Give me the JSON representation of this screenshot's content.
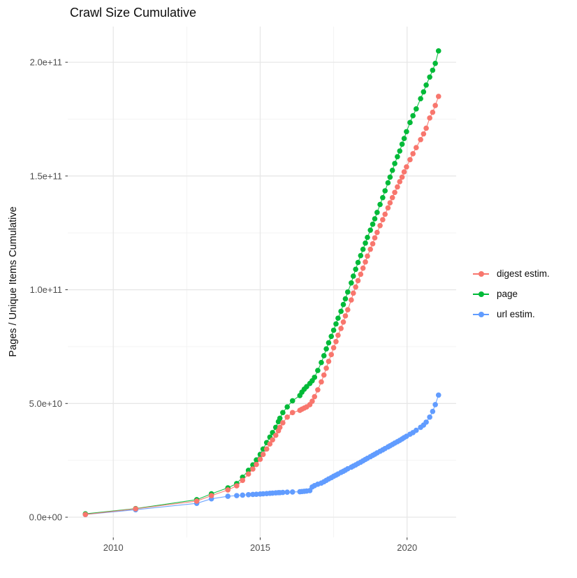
{
  "chart_data": {
    "type": "scatter",
    "title": "Crawl Size Cumulative",
    "xlabel": "",
    "ylabel": "Pages / Unique Items Cumulative",
    "grid": true,
    "legend_position": "right",
    "x_major_ticks": [
      2010,
      2015,
      2020
    ],
    "x_minor_ticks": [
      2012.5,
      2017.5
    ],
    "x_tick_labels": [
      "2010",
      "2015",
      "2020"
    ],
    "xlim": [
      2008.45,
      2021.67
    ],
    "y_value_multiplier": 10000000000,
    "y_major_ticks": [
      0,
      5,
      10,
      15,
      20
    ],
    "y_minor_ticks": [
      2.5,
      7.5,
      12.5,
      17.5
    ],
    "y_tick_labels": [
      "0.0e+00",
      "5.0e+10",
      "1.0e+11",
      "1.5e+11",
      "2.0e+11"
    ],
    "ylim": [
      -0.89,
      21.57
    ],
    "colors": {
      "digest": "#F8766D",
      "page": "#00BA38",
      "url": "#619CFF",
      "grid_major": "#e7e7e7",
      "grid_minor": "#f2f2f2",
      "axis_text": "#4d4d4d",
      "tick_mark": "#333333"
    },
    "series": [
      {
        "name": "digest estim.",
        "color": "#F8766D",
        "points": [
          [
            2009.05,
            0.12
          ],
          [
            2010.76,
            0.37
          ],
          [
            2012.84,
            0.71
          ],
          [
            2013.34,
            0.95
          ],
          [
            2013.9,
            1.2
          ],
          [
            2014.2,
            1.38
          ],
          [
            2014.4,
            1.62
          ],
          [
            2014.6,
            1.9
          ],
          [
            2014.75,
            2.12
          ],
          [
            2014.87,
            2.32
          ],
          [
            2015.0,
            2.55
          ],
          [
            2015.1,
            2.76
          ],
          [
            2015.22,
            3.0
          ],
          [
            2015.33,
            3.22
          ],
          [
            2015.42,
            3.4
          ],
          [
            2015.53,
            3.6
          ],
          [
            2015.62,
            3.8
          ],
          [
            2015.67,
            3.95
          ],
          [
            2015.77,
            4.15
          ],
          [
            2015.92,
            4.4
          ],
          [
            2016.1,
            4.6
          ],
          [
            2016.35,
            4.7
          ],
          [
            2016.42,
            4.75
          ],
          [
            2016.5,
            4.8
          ],
          [
            2016.58,
            4.85
          ],
          [
            2016.69,
            4.95
          ],
          [
            2016.77,
            5.1
          ],
          [
            2016.85,
            5.3
          ],
          [
            2016.96,
            5.6
          ],
          [
            2017.08,
            5.95
          ],
          [
            2017.17,
            6.25
          ],
          [
            2017.25,
            6.55
          ],
          [
            2017.33,
            6.85
          ],
          [
            2017.42,
            7.15
          ],
          [
            2017.5,
            7.45
          ],
          [
            2017.58,
            7.72
          ],
          [
            2017.65,
            8.0
          ],
          [
            2017.75,
            8.3
          ],
          [
            2017.83,
            8.58
          ],
          [
            2017.9,
            8.85
          ],
          [
            2017.98,
            9.12
          ],
          [
            2018.1,
            9.55
          ],
          [
            2018.17,
            9.85
          ],
          [
            2018.25,
            10.12
          ],
          [
            2018.33,
            10.4
          ],
          [
            2018.42,
            10.68
          ],
          [
            2018.5,
            10.95
          ],
          [
            2018.58,
            11.22
          ],
          [
            2018.65,
            11.48
          ],
          [
            2018.75,
            11.78
          ],
          [
            2018.83,
            12.02
          ],
          [
            2018.9,
            12.28
          ],
          [
            2018.98,
            12.52
          ],
          [
            2019.08,
            12.82
          ],
          [
            2019.17,
            13.08
          ],
          [
            2019.25,
            13.32
          ],
          [
            2019.35,
            13.6
          ],
          [
            2019.42,
            13.82
          ],
          [
            2019.5,
            14.05
          ],
          [
            2019.58,
            14.28
          ],
          [
            2019.67,
            14.52
          ],
          [
            2019.75,
            14.75
          ],
          [
            2019.83,
            14.95
          ],
          [
            2019.9,
            15.18
          ],
          [
            2019.98,
            15.4
          ],
          [
            2020.1,
            15.72
          ],
          [
            2020.2,
            15.98
          ],
          [
            2020.31,
            16.25
          ],
          [
            2020.46,
            16.6
          ],
          [
            2020.56,
            16.85
          ],
          [
            2020.65,
            17.1
          ],
          [
            2020.77,
            17.55
          ],
          [
            2020.87,
            17.8
          ],
          [
            2020.96,
            18.1
          ],
          [
            2021.07,
            18.5
          ]
        ]
      },
      {
        "name": "page",
        "color": "#00BA38",
        "points": [
          [
            2009.05,
            0.15
          ],
          [
            2010.76,
            0.38
          ],
          [
            2012.84,
            0.77
          ],
          [
            2013.34,
            1.03
          ],
          [
            2013.9,
            1.29
          ],
          [
            2014.2,
            1.48
          ],
          [
            2014.4,
            1.76
          ],
          [
            2014.6,
            2.06
          ],
          [
            2014.75,
            2.3
          ],
          [
            2014.87,
            2.52
          ],
          [
            2015.0,
            2.76
          ],
          [
            2015.1,
            3.0
          ],
          [
            2015.22,
            3.28
          ],
          [
            2015.33,
            3.52
          ],
          [
            2015.42,
            3.72
          ],
          [
            2015.53,
            3.95
          ],
          [
            2015.62,
            4.2
          ],
          [
            2015.67,
            4.35
          ],
          [
            2015.77,
            4.6
          ],
          [
            2015.92,
            4.85
          ],
          [
            2016.1,
            5.12
          ],
          [
            2016.35,
            5.35
          ],
          [
            2016.42,
            5.5
          ],
          [
            2016.5,
            5.63
          ],
          [
            2016.58,
            5.74
          ],
          [
            2016.69,
            5.88
          ],
          [
            2016.77,
            6.0
          ],
          [
            2016.85,
            6.15
          ],
          [
            2016.96,
            6.45
          ],
          [
            2017.08,
            6.8
          ],
          [
            2017.17,
            7.1
          ],
          [
            2017.25,
            7.4
          ],
          [
            2017.33,
            7.67
          ],
          [
            2017.42,
            7.95
          ],
          [
            2017.5,
            8.22
          ],
          [
            2017.58,
            8.5
          ],
          [
            2017.65,
            8.75
          ],
          [
            2017.75,
            9.05
          ],
          [
            2017.83,
            9.35
          ],
          [
            2017.9,
            9.6
          ],
          [
            2017.98,
            9.9
          ],
          [
            2018.1,
            10.3
          ],
          [
            2018.17,
            10.6
          ],
          [
            2018.25,
            10.9
          ],
          [
            2018.33,
            11.2
          ],
          [
            2018.42,
            11.5
          ],
          [
            2018.5,
            11.78
          ],
          [
            2018.58,
            12.05
          ],
          [
            2018.65,
            12.3
          ],
          [
            2018.75,
            12.62
          ],
          [
            2018.83,
            12.88
          ],
          [
            2018.9,
            13.12
          ],
          [
            2018.98,
            13.4
          ],
          [
            2019.08,
            13.75
          ],
          [
            2019.17,
            14.05
          ],
          [
            2019.25,
            14.35
          ],
          [
            2019.35,
            14.7
          ],
          [
            2019.42,
            14.95
          ],
          [
            2019.5,
            15.25
          ],
          [
            2019.58,
            15.55
          ],
          [
            2019.67,
            15.85
          ],
          [
            2019.75,
            16.1
          ],
          [
            2019.83,
            16.4
          ],
          [
            2019.9,
            16.65
          ],
          [
            2019.98,
            16.95
          ],
          [
            2020.1,
            17.35
          ],
          [
            2020.2,
            17.65
          ],
          [
            2020.31,
            17.95
          ],
          [
            2020.46,
            18.4
          ],
          [
            2020.56,
            18.7
          ],
          [
            2020.65,
            19.0
          ],
          [
            2020.77,
            19.35
          ],
          [
            2020.87,
            19.65
          ],
          [
            2020.96,
            19.95
          ],
          [
            2021.07,
            20.5
          ]
        ]
      },
      {
        "name": "url estim.",
        "color": "#619CFF",
        "points": [
          [
            2009.05,
            0.12
          ],
          [
            2010.76,
            0.33
          ],
          [
            2012.84,
            0.61
          ],
          [
            2013.34,
            0.81
          ],
          [
            2013.9,
            0.92
          ],
          [
            2014.2,
            0.95
          ],
          [
            2014.4,
            0.97
          ],
          [
            2014.6,
            0.99
          ],
          [
            2014.75,
            1.0
          ],
          [
            2014.87,
            1.01
          ],
          [
            2015.0,
            1.02
          ],
          [
            2015.1,
            1.03
          ],
          [
            2015.22,
            1.04
          ],
          [
            2015.33,
            1.05
          ],
          [
            2015.42,
            1.06
          ],
          [
            2015.53,
            1.07
          ],
          [
            2015.62,
            1.08
          ],
          [
            2015.67,
            1.08
          ],
          [
            2015.77,
            1.09
          ],
          [
            2015.92,
            1.1
          ],
          [
            2016.1,
            1.11
          ],
          [
            2016.35,
            1.12
          ],
          [
            2016.42,
            1.13
          ],
          [
            2016.5,
            1.14
          ],
          [
            2016.58,
            1.15
          ],
          [
            2016.69,
            1.17
          ],
          [
            2016.77,
            1.33
          ],
          [
            2016.85,
            1.39
          ],
          [
            2016.96,
            1.45
          ],
          [
            2017.08,
            1.5
          ],
          [
            2017.17,
            1.56
          ],
          [
            2017.25,
            1.62
          ],
          [
            2017.33,
            1.68
          ],
          [
            2017.42,
            1.74
          ],
          [
            2017.5,
            1.8
          ],
          [
            2017.58,
            1.85
          ],
          [
            2017.65,
            1.9
          ],
          [
            2017.75,
            1.97
          ],
          [
            2017.83,
            2.02
          ],
          [
            2017.9,
            2.07
          ],
          [
            2017.98,
            2.13
          ],
          [
            2018.1,
            2.2
          ],
          [
            2018.17,
            2.25
          ],
          [
            2018.25,
            2.3
          ],
          [
            2018.33,
            2.36
          ],
          [
            2018.42,
            2.42
          ],
          [
            2018.5,
            2.48
          ],
          [
            2018.58,
            2.54
          ],
          [
            2018.65,
            2.59
          ],
          [
            2018.75,
            2.66
          ],
          [
            2018.83,
            2.72
          ],
          [
            2018.9,
            2.77
          ],
          [
            2018.98,
            2.83
          ],
          [
            2019.08,
            2.9
          ],
          [
            2019.17,
            2.96
          ],
          [
            2019.25,
            3.02
          ],
          [
            2019.35,
            3.09
          ],
          [
            2019.42,
            3.14
          ],
          [
            2019.5,
            3.2
          ],
          [
            2019.58,
            3.26
          ],
          [
            2019.67,
            3.32
          ],
          [
            2019.75,
            3.38
          ],
          [
            2019.83,
            3.44
          ],
          [
            2019.9,
            3.5
          ],
          [
            2019.98,
            3.56
          ],
          [
            2020.1,
            3.65
          ],
          [
            2020.2,
            3.72
          ],
          [
            2020.31,
            3.82
          ],
          [
            2020.46,
            3.95
          ],
          [
            2020.56,
            4.05
          ],
          [
            2020.65,
            4.18
          ],
          [
            2020.77,
            4.4
          ],
          [
            2020.87,
            4.65
          ],
          [
            2020.96,
            4.95
          ],
          [
            2021.07,
            5.37
          ]
        ]
      }
    ]
  }
}
